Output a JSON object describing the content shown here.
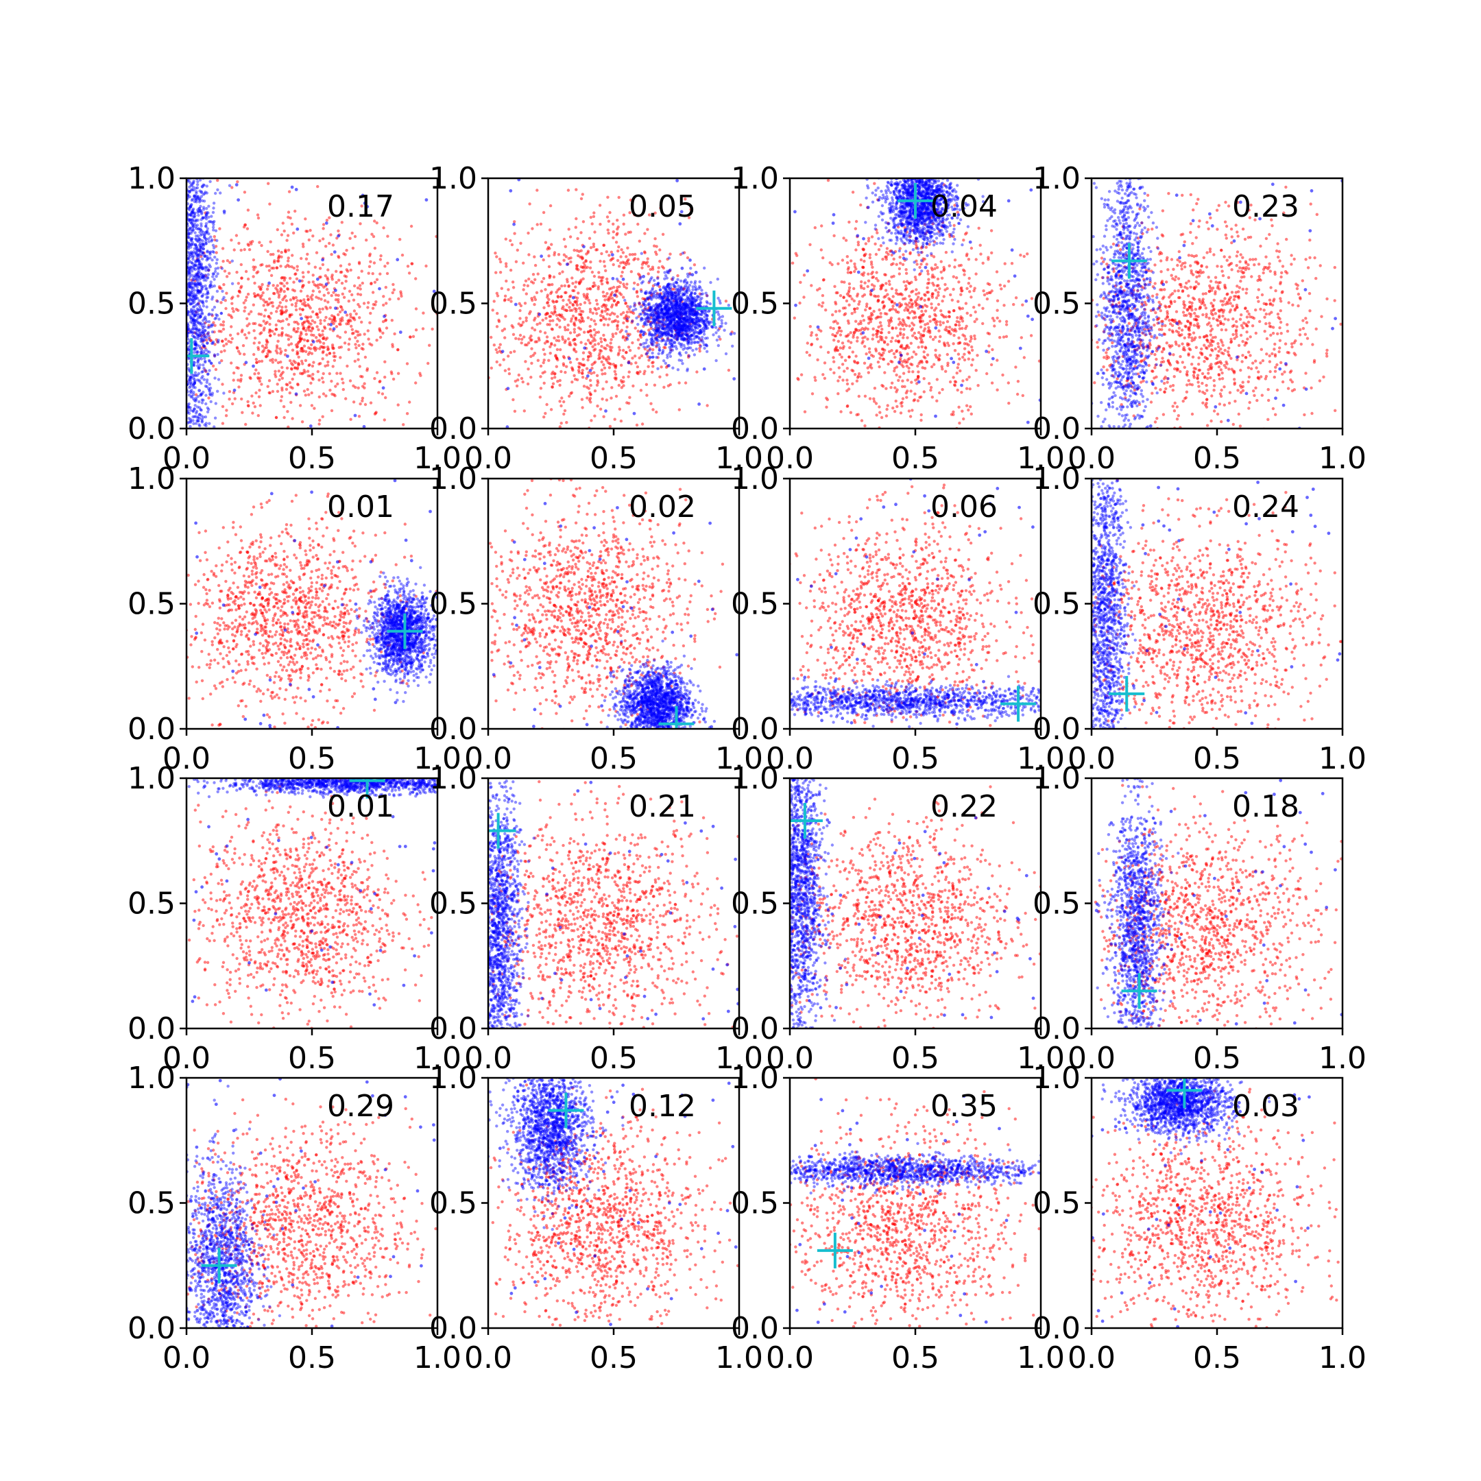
{
  "chart_data": {
    "type": "scatter",
    "layout": "4x4 grid of small-multiple scatter plots",
    "xlim": [
      0,
      1
    ],
    "ylim": [
      0,
      1
    ],
    "x_ticks": [
      "0.0",
      "0.5",
      "1.0"
    ],
    "y_ticks": [
      "0.0",
      "0.5",
      "1.0"
    ],
    "grid": false,
    "legend": "none",
    "colors": {
      "series_a": "#ff0000",
      "series_b": "#0000ff",
      "marker": "#17becf",
      "axes": "#000000"
    },
    "panels": [
      {
        "label": "0.17",
        "red": {
          "center": [
            0.45,
            0.42
          ],
          "spread": [
            0.22,
            0.2
          ]
        },
        "blue": {
          "shape": "band_vertical",
          "center": [
            0.04,
            0.55
          ],
          "spread": [
            0.04,
            0.35
          ]
        },
        "marker": [
          0.02,
          0.29
        ]
      },
      {
        "label": "0.05",
        "red": {
          "center": [
            0.4,
            0.44
          ],
          "spread": [
            0.2,
            0.2
          ]
        },
        "blue": {
          "shape": "blob",
          "center": [
            0.75,
            0.45
          ],
          "spread": [
            0.07,
            0.07
          ]
        },
        "marker": [
          0.9,
          0.48
        ]
      },
      {
        "label": "0.04",
        "red": {
          "center": [
            0.45,
            0.42
          ],
          "spread": [
            0.2,
            0.2
          ]
        },
        "blue": {
          "shape": "blob",
          "center": [
            0.52,
            0.9
          ],
          "spread": [
            0.07,
            0.08
          ]
        },
        "marker": [
          0.5,
          0.91
        ]
      },
      {
        "label": "0.23",
        "red": {
          "center": [
            0.45,
            0.42
          ],
          "spread": [
            0.22,
            0.2
          ]
        },
        "blue": {
          "shape": "band_vertical",
          "center": [
            0.14,
            0.5
          ],
          "spread": [
            0.05,
            0.3
          ]
        },
        "marker": [
          0.15,
          0.67
        ]
      },
      {
        "label": "0.01",
        "red": {
          "center": [
            0.4,
            0.44
          ],
          "spread": [
            0.2,
            0.18
          ]
        },
        "blue": {
          "shape": "blob",
          "center": [
            0.86,
            0.38
          ],
          "spread": [
            0.06,
            0.08
          ]
        },
        "marker": [
          0.87,
          0.39
        ]
      },
      {
        "label": "0.02",
        "red": {
          "center": [
            0.38,
            0.48
          ],
          "spread": [
            0.2,
            0.2
          ]
        },
        "blue": {
          "shape": "blob",
          "center": [
            0.67,
            0.1
          ],
          "spread": [
            0.07,
            0.07
          ]
        },
        "marker": [
          0.75,
          0.02
        ]
      },
      {
        "label": "0.06",
        "red": {
          "center": [
            0.45,
            0.42
          ],
          "spread": [
            0.2,
            0.2
          ]
        },
        "blue": {
          "shape": "band_horizontal",
          "center": [
            0.45,
            0.11
          ],
          "spread": [
            0.35,
            0.03
          ]
        },
        "marker": [
          0.91,
          0.1
        ]
      },
      {
        "label": "0.24",
        "red": {
          "center": [
            0.45,
            0.4
          ],
          "spread": [
            0.22,
            0.2
          ]
        },
        "blue": {
          "shape": "band_vertical",
          "center": [
            0.06,
            0.45
          ],
          "spread": [
            0.04,
            0.35
          ]
        },
        "marker": [
          0.14,
          0.14
        ]
      },
      {
        "label": "0.01",
        "red": {
          "center": [
            0.45,
            0.45
          ],
          "spread": [
            0.2,
            0.2
          ]
        },
        "blue": {
          "shape": "band_horizontal",
          "center": [
            0.65,
            0.98
          ],
          "spread": [
            0.25,
            0.02
          ]
        },
        "marker": [
          0.72,
          0.99
        ]
      },
      {
        "label": "0.21",
        "red": {
          "center": [
            0.45,
            0.42
          ],
          "spread": [
            0.22,
            0.2
          ]
        },
        "blue": {
          "shape": "band_vertical",
          "center": [
            0.05,
            0.4
          ],
          "spread": [
            0.04,
            0.3
          ]
        },
        "marker": [
          0.04,
          0.79
        ]
      },
      {
        "label": "0.22",
        "red": {
          "center": [
            0.45,
            0.42
          ],
          "spread": [
            0.22,
            0.2
          ]
        },
        "blue": {
          "shape": "band_vertical",
          "center": [
            0.05,
            0.55
          ],
          "spread": [
            0.04,
            0.3
          ]
        },
        "marker": [
          0.06,
          0.83
        ]
      },
      {
        "label": "0.18",
        "red": {
          "center": [
            0.45,
            0.4
          ],
          "spread": [
            0.22,
            0.2
          ]
        },
        "blue": {
          "shape": "band_vertical",
          "center": [
            0.18,
            0.4
          ],
          "spread": [
            0.05,
            0.25
          ]
        },
        "marker": [
          0.19,
          0.15
        ]
      },
      {
        "label": "0.29",
        "red": {
          "center": [
            0.45,
            0.4
          ],
          "spread": [
            0.22,
            0.2
          ]
        },
        "blue": {
          "shape": "band_vertical",
          "center": [
            0.14,
            0.25
          ],
          "spread": [
            0.07,
            0.2
          ]
        },
        "marker": [
          0.13,
          0.25
        ]
      },
      {
        "label": "0.12",
        "red": {
          "center": [
            0.45,
            0.4
          ],
          "spread": [
            0.2,
            0.2
          ]
        },
        "blue": {
          "shape": "blob",
          "center": [
            0.25,
            0.8
          ],
          "spread": [
            0.08,
            0.12
          ]
        },
        "marker": [
          0.31,
          0.87
        ]
      },
      {
        "label": "0.35",
        "red": {
          "center": [
            0.45,
            0.4
          ],
          "spread": [
            0.22,
            0.2
          ]
        },
        "blue": {
          "shape": "band_horizontal",
          "center": [
            0.4,
            0.63
          ],
          "spread": [
            0.3,
            0.03
          ]
        },
        "marker": [
          0.18,
          0.31
        ]
      },
      {
        "label": "0.03",
        "red": {
          "center": [
            0.45,
            0.4
          ],
          "spread": [
            0.22,
            0.2
          ]
        },
        "blue": {
          "shape": "blob",
          "center": [
            0.35,
            0.9
          ],
          "spread": [
            0.1,
            0.06
          ]
        },
        "marker": [
          0.37,
          0.95
        ]
      }
    ]
  }
}
